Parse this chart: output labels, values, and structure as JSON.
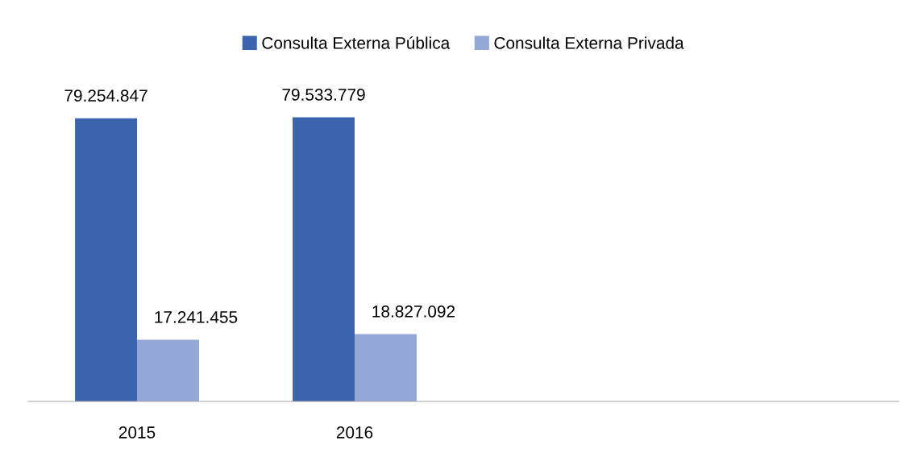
{
  "chart_data": {
    "type": "bar",
    "categories": [
      "2015",
      "2016",
      null,
      null
    ],
    "series": [
      {
        "name": "Consulta Externa Pública",
        "color": "#3c64ae",
        "values": [
          79254847,
          79533779,
          null,
          null
        ],
        "value_labels": [
          "79.254.847",
          "79.533.779",
          null,
          null
        ]
      },
      {
        "name": "Consulta Externa Privada",
        "color": "#93a8d6",
        "values": [
          17241455,
          18827092,
          null,
          null
        ],
        "value_labels": [
          "17.241.455",
          "18.827.092",
          null,
          null
        ]
      }
    ],
    "legend": "top",
    "grid": false,
    "tick_labels": "x"
  }
}
